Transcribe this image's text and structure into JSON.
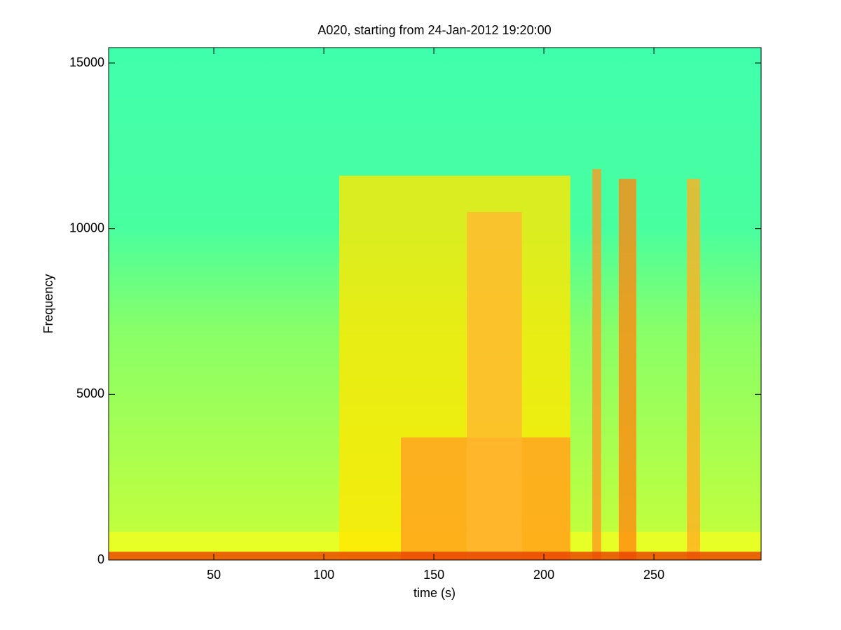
{
  "chart_data": {
    "type": "spectrogram",
    "title": "A020, starting from 24-Jan-2012 19:20:00",
    "xlabel": "time (s)",
    "ylabel": "Frequency",
    "xlim": [
      2.2,
      298.7
    ],
    "ylim": [
      0,
      15465
    ],
    "xticks": [
      50,
      100,
      150,
      200,
      250
    ],
    "yticks": [
      0,
      5000,
      10000,
      15000
    ],
    "regions": [
      {
        "x": [
          2.2,
          298.7
        ],
        "y": [
          0,
          850
        ],
        "color": "#f0ff20"
      },
      {
        "x": [
          107,
          212
        ],
        "y": [
          0,
          11600
        ],
        "color": "#ffe800"
      },
      {
        "x": [
          135,
          212
        ],
        "y": [
          0,
          3700
        ],
        "color": "#ffa020"
      },
      {
        "x": [
          165,
          190
        ],
        "y": [
          0,
          10500
        ],
        "color": "#ffb830"
      },
      {
        "x": [
          222,
          226
        ],
        "y": [
          0,
          11800
        ],
        "color": "#ff9a20"
      },
      {
        "x": [
          234,
          242
        ],
        "y": [
          0,
          11500
        ],
        "color": "#ff8a10"
      },
      {
        "x": [
          265,
          271
        ],
        "y": [
          0,
          11500
        ],
        "color": "#ffb020"
      },
      {
        "x": [
          2.2,
          298.7
        ],
        "y": [
          0,
          250
        ],
        "color": "#e84000"
      }
    ]
  }
}
